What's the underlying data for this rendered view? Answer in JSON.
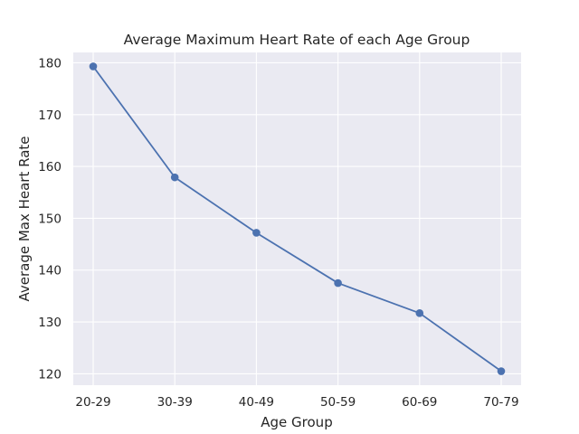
{
  "chart_data": {
    "type": "line",
    "title": "Average Maximum Heart Rate of each Age Group",
    "xlabel": "Age Group",
    "ylabel": "Average Max Heart Rate",
    "categories": [
      "20-29",
      "30-39",
      "40-49",
      "50-59",
      "60-69",
      "70-79"
    ],
    "series": [
      {
        "values": [
          179.3,
          157.9,
          147.2,
          137.5,
          131.7,
          120.5
        ],
        "color": "#4c72b0",
        "marker": "circle"
      }
    ],
    "yticks": [
      120,
      130,
      140,
      150,
      160,
      170,
      180
    ],
    "ylim": [
      117.8,
      182.0
    ],
    "grid": true,
    "legend": false,
    "style": {
      "background": "#eaeaf2",
      "grid_color": "#ffffff"
    }
  }
}
